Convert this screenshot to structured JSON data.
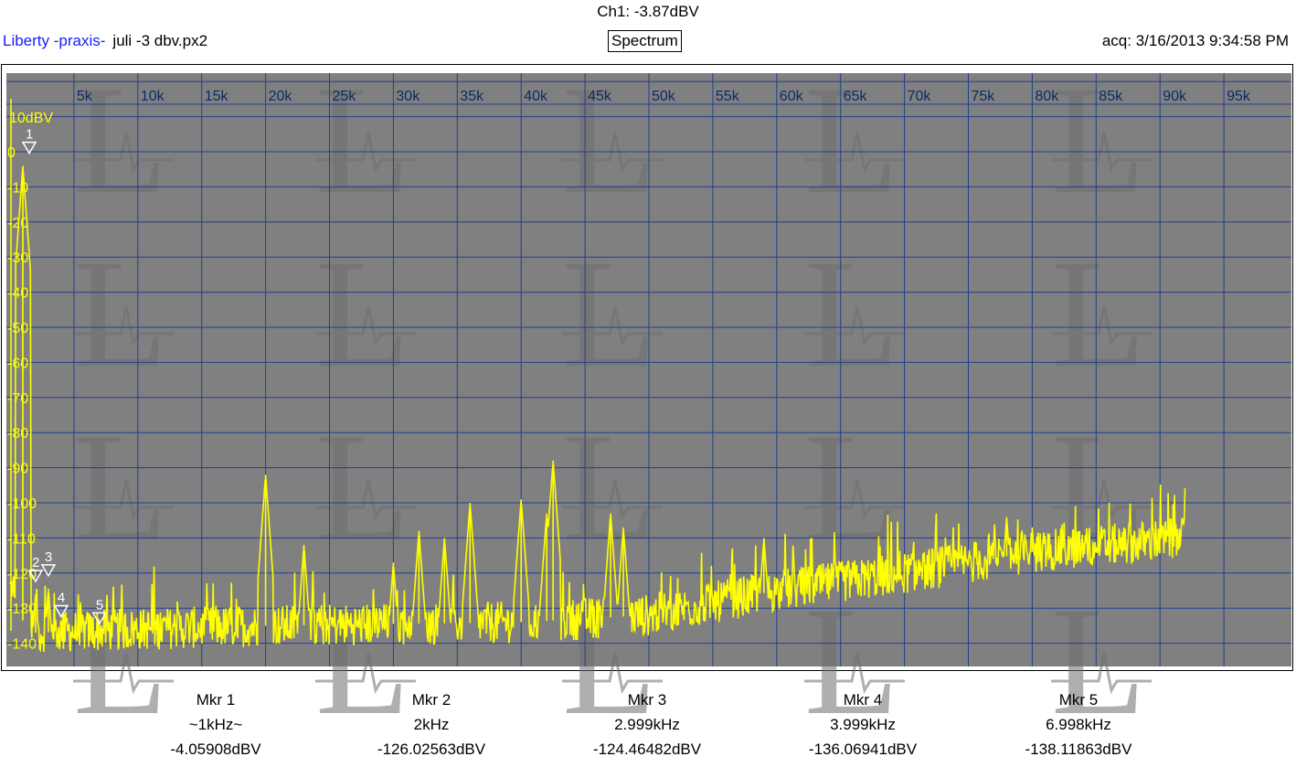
{
  "header": {
    "channel_readout": "Ch1: -3.87dBV",
    "brand": "Liberty -praxis-",
    "file_name": "juli -3 dbv.px2",
    "mode": "Spectrum",
    "acquired": "acq: 3/16/2013 9:34:58 PM"
  },
  "colors": {
    "plot_bg": "#808080",
    "grid": "#1f3f8f",
    "trace": "#ffff00",
    "freq_labels": "#0a2a6a",
    "watermark": "#6e6e6e"
  },
  "chart_data": {
    "type": "line",
    "title": "",
    "xlabel": "",
    "ylabel": "",
    "xlim": [
      0,
      100000
    ],
    "ylim": [
      -145,
      12
    ],
    "grid": true,
    "x_ticks": [
      5000,
      10000,
      15000,
      20000,
      25000,
      30000,
      35000,
      40000,
      45000,
      50000,
      55000,
      60000,
      65000,
      70000,
      75000,
      80000,
      85000,
      90000,
      95000
    ],
    "x_tick_labels": [
      "5k",
      "10k",
      "15k",
      "20k",
      "25k",
      "30k",
      "35k",
      "40k",
      "45k",
      "50k",
      "55k",
      "60k",
      "65k",
      "70k",
      "75k",
      "80k",
      "85k",
      "90k",
      "95k"
    ],
    "y_ticks": [
      10,
      0,
      -10,
      -20,
      -30,
      -40,
      -50,
      -60,
      -70,
      -80,
      -90,
      -100,
      -110,
      -120,
      -130,
      -140
    ],
    "y_tick_labels": [
      "10dBV",
      "0",
      "-10",
      "-20",
      "-30",
      "-40",
      "-50",
      "-60",
      "-70",
      "-80",
      "-90",
      "-100",
      "-110",
      "-120",
      "-130",
      "-140"
    ],
    "series": [
      {
        "noise_floor": {
          "x": [
            0,
            2000,
            10000,
            20000,
            40000,
            50000,
            60000,
            70000,
            80000,
            92000
          ],
          "y": [
            -130,
            -137,
            -136,
            -135,
            -134,
            -132,
            -125,
            -120,
            -114,
            -110
          ]
        },
        "peaks": [
          {
            "x": 1000,
            "y": -4
          },
          {
            "x": 2000,
            "y": -126
          },
          {
            "x": 2999,
            "y": -124.5
          },
          {
            "x": 3999,
            "y": -136
          },
          {
            "x": 6998,
            "y": -138
          },
          {
            "x": 20000,
            "y": -92
          },
          {
            "x": 23000,
            "y": -112
          },
          {
            "x": 30000,
            "y": -117
          },
          {
            "x": 32000,
            "y": -108
          },
          {
            "x": 34000,
            "y": -110
          },
          {
            "x": 36000,
            "y": -100
          },
          {
            "x": 40000,
            "y": -99
          },
          {
            "x": 42000,
            "y": -103
          },
          {
            "x": 42500,
            "y": -88
          },
          {
            "x": 47000,
            "y": -103
          },
          {
            "x": 48000,
            "y": -107
          },
          {
            "x": 59000,
            "y": -110
          },
          {
            "x": 78000,
            "y": -104
          },
          {
            "x": 80000,
            "y": -107
          }
        ]
      }
    ],
    "markers": [
      {
        "name": "Mkr 1",
        "label": "1",
        "freq": "~1kHz~",
        "level": "-4.05908dBV",
        "x": 1000,
        "y": -4.06
      },
      {
        "name": "Mkr 2",
        "label": "2",
        "freq": "2kHz",
        "level": "-126.02563dBV",
        "x": 2000,
        "y": -126.03
      },
      {
        "name": "Mkr 3",
        "label": "3",
        "freq": "2.999kHz",
        "level": "-124.46482dBV",
        "x": 2999,
        "y": -124.46
      },
      {
        "name": "Mkr 4",
        "label": "4",
        "freq": "3.999kHz",
        "level": "-136.06941dBV",
        "x": 3999,
        "y": -136.07
      },
      {
        "name": "Mkr 5",
        "label": "5",
        "freq": "6.998kHz",
        "level": "-138.11863dBV",
        "x": 6998,
        "y": -138.12
      }
    ],
    "watermark_letter": "L"
  }
}
